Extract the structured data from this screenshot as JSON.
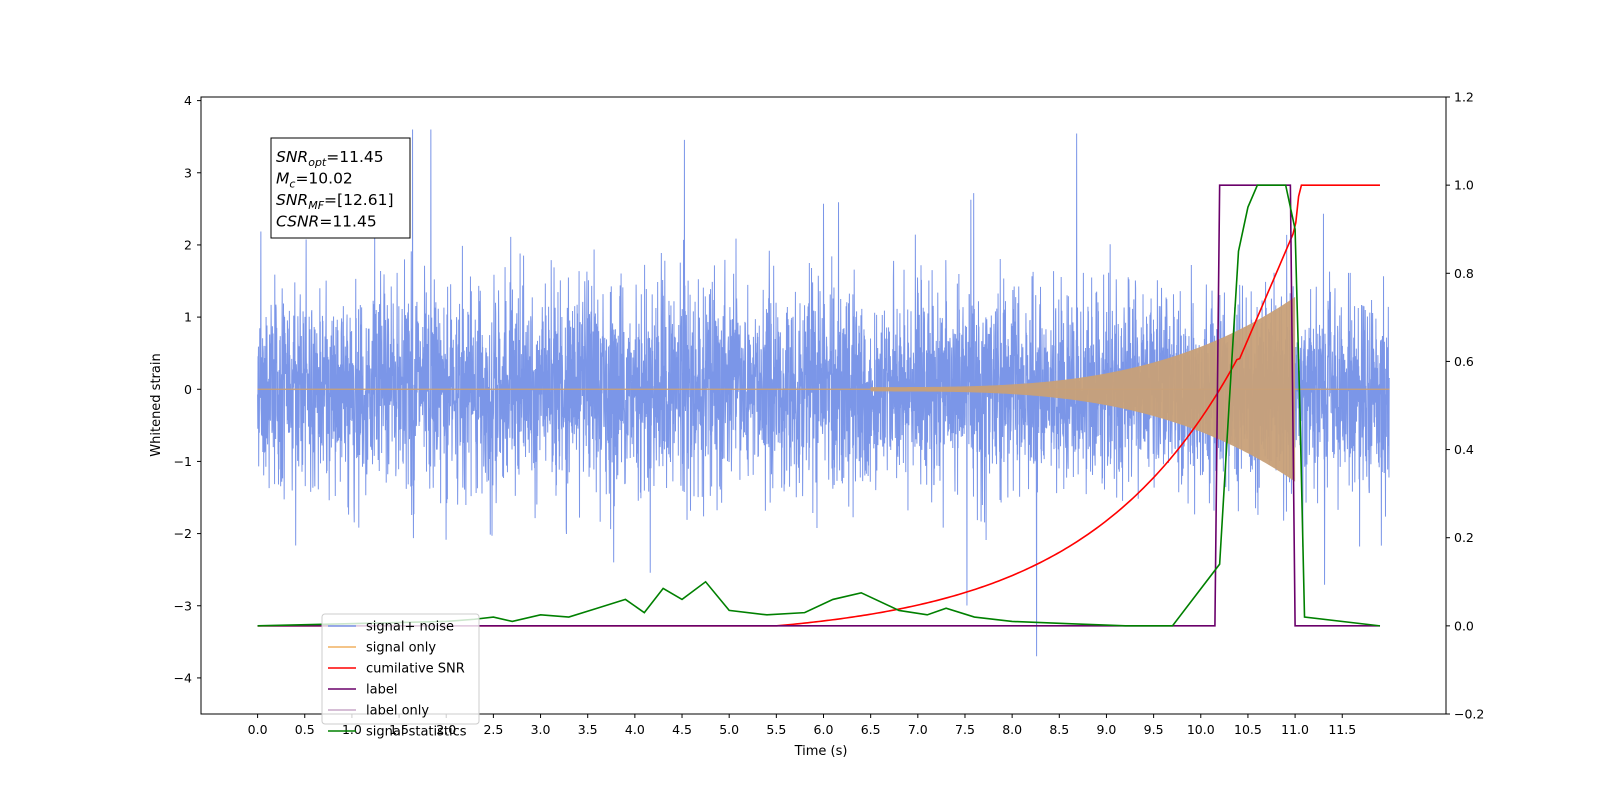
{
  "chart_data": {
    "type": "line",
    "xlabel": "Time (s)",
    "ylabel": "Whitened strain",
    "xlim": [
      -0.6,
      12.6
    ],
    "ylim": [
      -4.5,
      4.05
    ],
    "y2lim": [
      -0.2,
      1.2
    ],
    "xticks": [
      "0.0",
      "0.5",
      "1.0",
      "1.5",
      "2.0",
      "2.5",
      "3.0",
      "3.5",
      "4.0",
      "4.5",
      "5.0",
      "5.5",
      "6.0",
      "6.5",
      "7.0",
      "7.5",
      "8.0",
      "8.5",
      "9.0",
      "9.5",
      "10.0",
      "10.5",
      "11.0",
      "11.5"
    ],
    "yticks": [
      "4",
      "3",
      "2",
      "1",
      "0",
      "−1",
      "−2",
      "−3",
      "−4"
    ],
    "y2ticks": [
      "1.2",
      "1.0",
      "0.8",
      "0.6",
      "0.4",
      "0.2",
      "0.0",
      "−0.2"
    ],
    "grid": false,
    "legend_position": "bottom-left",
    "colors": {
      "signal_noise": "#7b96e8",
      "signal_only": "#f0b060",
      "signal_only_fill": "#c8a078",
      "cumulative_snr": "#ff0000",
      "label": "#6a006a",
      "signal_statistics": "#008000"
    },
    "series": [
      {
        "name": "signal+ noise",
        "axis": "left",
        "x_range": [
          0.0,
          12.0
        ],
        "envelope_y": [
          -2.0,
          2.4
        ],
        "peaks_y": [
          3.6,
          -3.7
        ]
      },
      {
        "name": "signal only",
        "axis": "left",
        "x_range": [
          0.0,
          11.0
        ],
        "chirp_amplitude_end": 1.3,
        "merger_time": 11.0
      },
      {
        "name": "cumilative SNR",
        "axis": "right",
        "x": [
          0.0,
          6.0,
          7.0,
          8.0,
          9.0,
          9.5,
          10.0,
          10.5,
          10.8,
          11.0,
          11.05,
          11.9
        ],
        "y": [
          0.0,
          0.0,
          0.02,
          0.09,
          0.19,
          0.26,
          0.38,
          0.6,
          0.8,
          0.9,
          1.0,
          1.0
        ]
      },
      {
        "name": "label",
        "axis": "right",
        "x": [
          0.0,
          10.15,
          10.2,
          10.95,
          11.0,
          11.9
        ],
        "y": [
          0.0,
          0.0,
          1.0,
          1.0,
          0.0,
          0.0
        ]
      },
      {
        "name": "label only",
        "axis": "right",
        "x": [],
        "y": []
      },
      {
        "name": "signal statistics",
        "axis": "right",
        "x": [
          0.0,
          2.0,
          2.3,
          2.5,
          2.7,
          3.0,
          3.3,
          3.6,
          3.9,
          4.1,
          4.3,
          4.5,
          4.75,
          5.0,
          5.4,
          5.8,
          6.1,
          6.4,
          6.8,
          7.1,
          7.3,
          7.6,
          8.0,
          8.6,
          9.2,
          9.7,
          10.2,
          10.3,
          10.4,
          10.5,
          10.6,
          10.7,
          10.9,
          11.0,
          11.05,
          11.1,
          11.9
        ],
        "y": [
          0.0,
          0.01,
          0.015,
          0.02,
          0.01,
          0.025,
          0.02,
          0.04,
          0.06,
          0.03,
          0.085,
          0.06,
          0.1,
          0.035,
          0.025,
          0.03,
          0.06,
          0.075,
          0.035,
          0.025,
          0.04,
          0.02,
          0.01,
          0.005,
          0.0,
          0.0,
          0.14,
          0.5,
          0.85,
          0.95,
          1.0,
          1.0,
          1.0,
          0.9,
          0.5,
          0.02,
          0.0
        ]
      }
    ],
    "annotation": {
      "lines": [
        {
          "sym": "SNR",
          "sub": "opt",
          "text": "=11.45"
        },
        {
          "sym": "M",
          "sub": "c",
          "text": "=10.02"
        },
        {
          "sym": "SNR",
          "sub": "MF",
          "text": "=[12.61]"
        },
        {
          "sym": "CSNR",
          "sub": "",
          "text": "=11.45"
        }
      ]
    }
  }
}
